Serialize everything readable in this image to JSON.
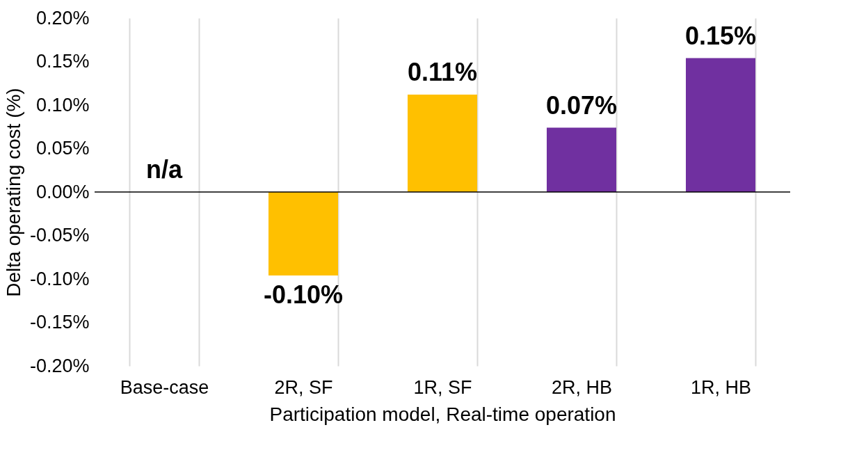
{
  "chart_data": {
    "type": "bar",
    "xlabel": "Participation model, Real-time operation",
    "ylabel": "Delta operating cost (%)",
    "categories": [
      "Base-case",
      "2R, SF",
      "1R, SF",
      "2R, HB",
      "1R, HB"
    ],
    "values": [
      null,
      -0.096,
      0.112,
      0.074,
      0.154
    ],
    "colors": [
      "#ffc000",
      "#ffc000",
      "#ffc000",
      "#7030a0",
      "#7030a0"
    ],
    "value_labels": [
      "n/a",
      "-0.10%",
      "0.11%",
      "0.07%",
      "0.15%"
    ],
    "ylim": [
      -0.2,
      0.2
    ],
    "yticks": [
      {
        "value": -0.2,
        "label": "-0.20%"
      },
      {
        "value": -0.15,
        "label": "-0.15%"
      },
      {
        "value": -0.1,
        "label": "-0.10%"
      },
      {
        "value": -0.05,
        "label": "-0.05%"
      },
      {
        "value": 0,
        "label": "0.00%"
      },
      {
        "value": 0.05,
        "label": "0.05%"
      },
      {
        "value": 0.1,
        "label": "0.10%"
      },
      {
        "value": 0.15,
        "label": "0.15%"
      },
      {
        "value": 0.2,
        "label": "0.20%"
      }
    ],
    "ref_lines": [
      {
        "axis": "y",
        "value": 0,
        "color": "#000000"
      }
    ],
    "grid": "x"
  }
}
